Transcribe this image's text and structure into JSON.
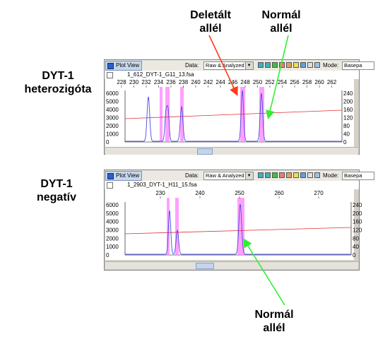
{
  "annotations": {
    "top_deleted": "Deletált\nallél",
    "top_normal": "Normál\nallél",
    "bottom_normal": "Normál\nallél"
  },
  "panel_labels": {
    "heterozygous": "DYT-1\nheterozigóta",
    "negative": "DYT-1\nnegatív"
  },
  "panels": [
    {
      "title": "Plot View",
      "data_label": "Data:",
      "data_value": "Raw & Analyzed",
      "mode_label": "Mode:",
      "mode_value": "Basepa",
      "file_name": "1_612_DYT-1_G11_13.fsa",
      "x_ticks": [
        "228",
        "230",
        "232",
        "234",
        "236",
        "238",
        "240",
        "242",
        "244",
        "246",
        "248",
        "250",
        "252",
        "254",
        "256",
        "258",
        "260",
        "262"
      ],
      "y_left_ticks": [
        "6000",
        "5000",
        "4000",
        "3000",
        "2000",
        "1000",
        "0"
      ],
      "y_right_ticks": [
        "240",
        "200",
        "160",
        "120",
        "80",
        "40",
        "0"
      ]
    },
    {
      "title": "Plot View",
      "data_label": "Data:",
      "data_value": "Raw & Analyzed",
      "mode_label": "Mode:",
      "mode_value": "Basepa",
      "file_name": "1_2903_DYT-1_H11_15.fsa",
      "x_ticks": [
        "230",
        "240",
        "250",
        "260",
        "270"
      ],
      "y_left_ticks": [
        "6000",
        "5000",
        "4000",
        "3000",
        "2000",
        "1000",
        "0"
      ],
      "y_right_ticks": [
        "240",
        "200",
        "160",
        "120",
        "80",
        "40",
        "0"
      ]
    }
  ],
  "colors": {
    "trace": "#4a4ae0",
    "size_line": "#e03030",
    "highlight": "#ff80ff",
    "arrow_red": "#ff3b1a",
    "arrow_green": "#33ee33"
  }
}
